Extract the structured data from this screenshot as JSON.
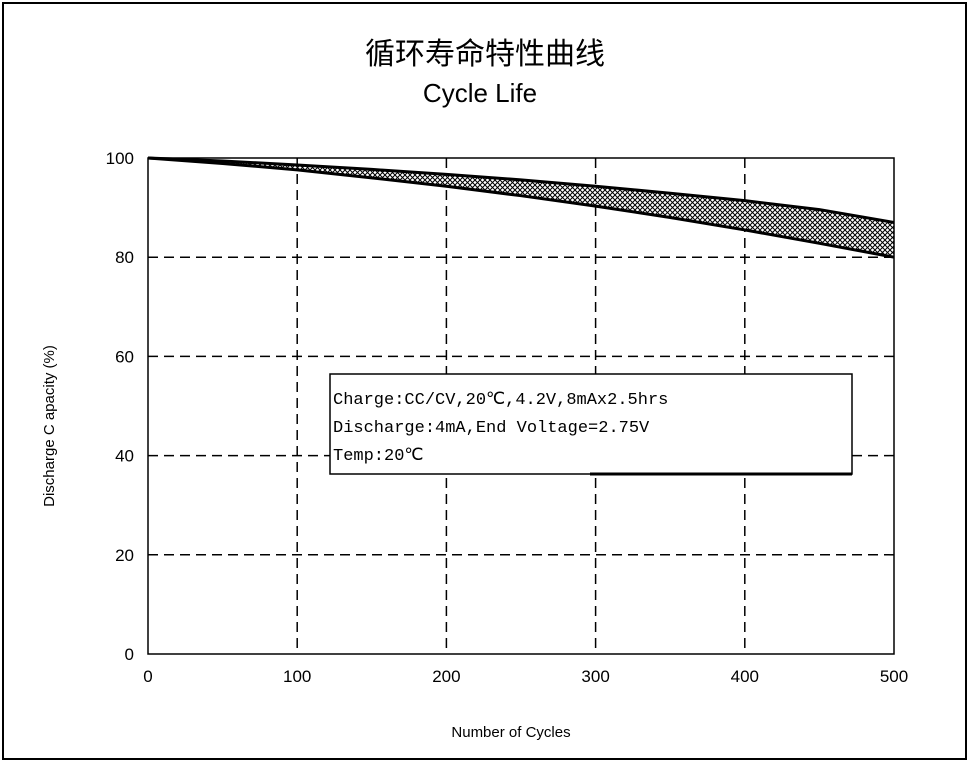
{
  "chart_data": {
    "type": "area",
    "title": "循环寿命特性曲线",
    "subtitle": "Cycle Life",
    "xlabel": "Number of Cycles",
    "ylabel": "Discharge C apacity (%)",
    "xlim": [
      0,
      500
    ],
    "ylim": [
      0,
      100
    ],
    "xticks": [
      0,
      100,
      200,
      300,
      400,
      500
    ],
    "yticks": [
      0,
      20,
      40,
      60,
      80,
      100
    ],
    "grid": true,
    "grid_style": "dashed",
    "band_fill": "crosshatch",
    "series": [
      {
        "x": [
          0,
          50,
          100,
          150,
          200,
          250,
          300,
          350,
          400,
          450,
          500
        ],
        "values": [
          100,
          99.4,
          98.6,
          97.7,
          96.7,
          95.6,
          94.3,
          92.9,
          91.4,
          89.6,
          87
        ]
      },
      {
        "x": [
          0,
          50,
          100,
          150,
          200,
          250,
          300,
          350,
          400,
          450,
          500
        ],
        "values": [
          100,
          98.9,
          97.6,
          96,
          94.3,
          92.4,
          90.3,
          88,
          85.5,
          82.8,
          80
        ]
      }
    ],
    "annotation": {
      "lines": [
        "Charge:CC/CV,20℃,4.2V,8mAx2.5hrs",
        "Discharge:4mA,End Voltage=2.75V",
        "Temp:20℃"
      ],
      "placement": "center"
    },
    "colors": {
      "line": "#000000",
      "grid": "#000000",
      "background": "#ffffff"
    }
  }
}
